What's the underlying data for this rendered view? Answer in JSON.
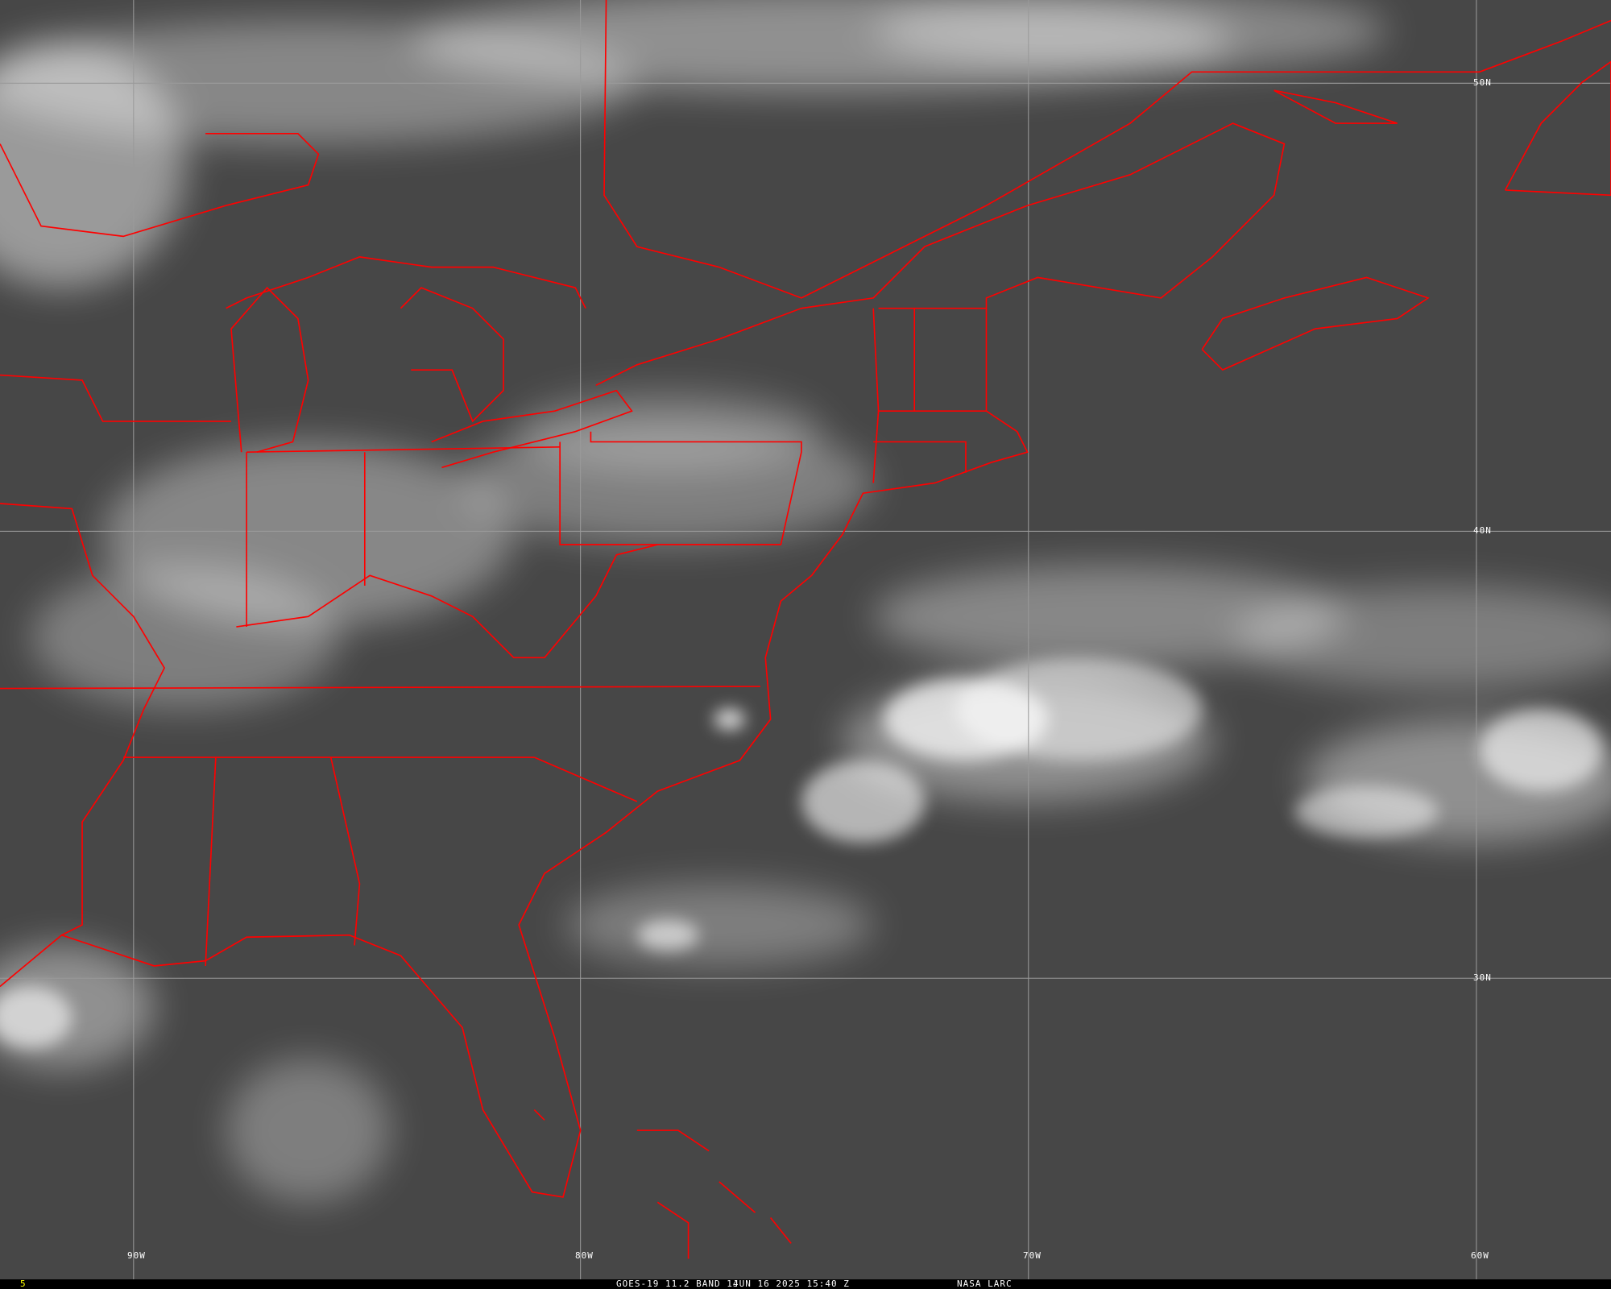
{
  "image": {
    "satellite": "GOES-19",
    "band_text": "GOES-19 11.2 BAND 14",
    "datetime": "JUN 16 2025 15:40 Z",
    "credit": "NASA LARC",
    "frame_number": "5",
    "frame_number_color": "#ffff00",
    "boundary_color": "#ff0000",
    "grid_color": "#9a9a9a"
  },
  "grid": {
    "longitudes": [
      "90W",
      "80W",
      "70W",
      "60W"
    ],
    "latitudes": [
      "50N",
      "40N",
      "30N"
    ]
  }
}
